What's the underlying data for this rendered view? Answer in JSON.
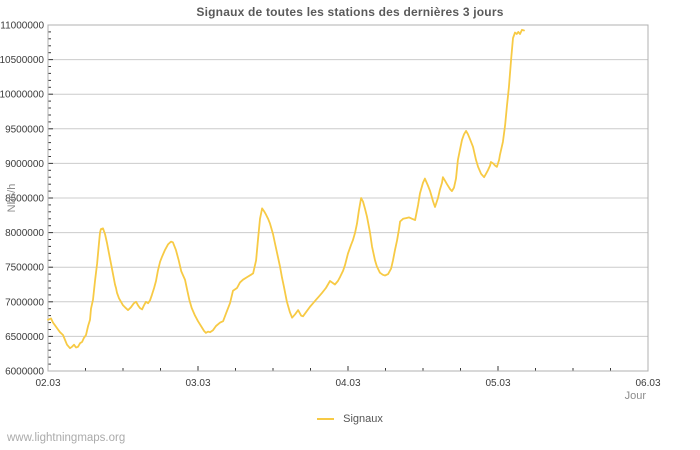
{
  "chart": {
    "title": "Signaux de toutes les stations des dernières 3 jours",
    "xlabel": "Jour",
    "ylabel": "Nbs/h",
    "legend": [
      "Signaux"
    ]
  },
  "footer": {
    "watermark": "www.lightningmaps.org"
  },
  "colors": {
    "line": "#f7ca45",
    "grid": "#cccccc",
    "border": "#b0b0b0",
    "tick": "#3a3a3a",
    "tick_label": "#3c3c3c",
    "title": "#5a5a5a",
    "axis_title": "#8c8c8c",
    "watermark": "#ababab"
  },
  "chart_data": {
    "type": "line",
    "title": "Signaux de toutes les stations des dernières 3 jours",
    "xlabel": "Jour",
    "ylabel": "Nbs/h",
    "grid": "horizontal-only",
    "legend_position": "bottom-center",
    "xlim_days": [
      0,
      4
    ],
    "ylim": [
      6000000,
      11000000
    ],
    "x_tick_labels": [
      "02.03",
      "03.03",
      "04.03",
      "05.03",
      "06.03"
    ],
    "x_tick_days": [
      0,
      1,
      2,
      3,
      4
    ],
    "x_minor_tick_step_days": 0.25,
    "y_tick_labels": [
      "6000000",
      "6500000",
      "7000000",
      "7500000",
      "8000000",
      "8500000",
      "9000000",
      "9500000",
      "10000000",
      "10500000",
      "11000000"
    ],
    "y_tick_values": [
      6000000,
      6500000,
      7000000,
      7500000,
      8000000,
      8500000,
      9000000,
      9500000,
      10000000,
      10500000,
      11000000
    ],
    "y_minor_tick_step": 100000,
    "series": [
      {
        "name": "Signaux",
        "color": "#f7ca45",
        "points": [
          [
            0.0,
            6740000
          ],
          [
            0.02,
            6760000
          ],
          [
            0.033,
            6700000
          ],
          [
            0.047,
            6660000
          ],
          [
            0.067,
            6600000
          ],
          [
            0.08,
            6560000
          ],
          [
            0.1,
            6520000
          ],
          [
            0.113,
            6450000
          ],
          [
            0.127,
            6380000
          ],
          [
            0.147,
            6330000
          ],
          [
            0.16,
            6350000
          ],
          [
            0.173,
            6380000
          ],
          [
            0.187,
            6340000
          ],
          [
            0.2,
            6350000
          ],
          [
            0.213,
            6400000
          ],
          [
            0.227,
            6420000
          ],
          [
            0.24,
            6480000
          ],
          [
            0.253,
            6520000
          ],
          [
            0.267,
            6650000
          ],
          [
            0.28,
            6740000
          ],
          [
            0.287,
            6900000
          ],
          [
            0.3,
            7030000
          ],
          [
            0.313,
            7300000
          ],
          [
            0.327,
            7550000
          ],
          [
            0.34,
            7850000
          ],
          [
            0.347,
            8000000
          ],
          [
            0.353,
            8050000
          ],
          [
            0.367,
            8060000
          ],
          [
            0.38,
            7980000
          ],
          [
            0.393,
            7850000
          ],
          [
            0.407,
            7700000
          ],
          [
            0.42,
            7550000
          ],
          [
            0.433,
            7400000
          ],
          [
            0.447,
            7250000
          ],
          [
            0.453,
            7200000
          ],
          [
            0.46,
            7130000
          ],
          [
            0.473,
            7050000
          ],
          [
            0.487,
            7000000
          ],
          [
            0.5,
            6950000
          ],
          [
            0.513,
            6920000
          ],
          [
            0.533,
            6880000
          ],
          [
            0.553,
            6920000
          ],
          [
            0.573,
            6980000
          ],
          [
            0.587,
            7000000
          ],
          [
            0.6,
            6950000
          ],
          [
            0.613,
            6910000
          ],
          [
            0.627,
            6890000
          ],
          [
            0.64,
            6950000
          ],
          [
            0.653,
            7000000
          ],
          [
            0.667,
            6980000
          ],
          [
            0.68,
            7020000
          ],
          [
            0.693,
            7100000
          ],
          [
            0.707,
            7200000
          ],
          [
            0.72,
            7300000
          ],
          [
            0.733,
            7450000
          ],
          [
            0.747,
            7580000
          ],
          [
            0.76,
            7650000
          ],
          [
            0.78,
            7750000
          ],
          [
            0.8,
            7830000
          ],
          [
            0.82,
            7870000
          ],
          [
            0.833,
            7860000
          ],
          [
            0.853,
            7750000
          ],
          [
            0.871,
            7600000
          ],
          [
            0.889,
            7440000
          ],
          [
            0.913,
            7320000
          ],
          [
            0.93,
            7150000
          ],
          [
            0.942,
            7030000
          ],
          [
            0.958,
            6910000
          ],
          [
            0.98,
            6800000
          ],
          [
            1.0,
            6720000
          ],
          [
            1.02,
            6650000
          ],
          [
            1.04,
            6580000
          ],
          [
            1.053,
            6550000
          ],
          [
            1.067,
            6570000
          ],
          [
            1.08,
            6560000
          ],
          [
            1.1,
            6590000
          ],
          [
            1.12,
            6650000
          ],
          [
            1.147,
            6700000
          ],
          [
            1.167,
            6720000
          ],
          [
            1.19,
            6850000
          ],
          [
            1.213,
            6980000
          ],
          [
            1.233,
            7160000
          ],
          [
            1.26,
            7200000
          ],
          [
            1.28,
            7280000
          ],
          [
            1.3,
            7320000
          ],
          [
            1.33,
            7360000
          ],
          [
            1.353,
            7390000
          ],
          [
            1.367,
            7410000
          ],
          [
            1.387,
            7600000
          ],
          [
            1.4,
            7900000
          ],
          [
            1.413,
            8200000
          ],
          [
            1.427,
            8350000
          ],
          [
            1.44,
            8310000
          ],
          [
            1.453,
            8260000
          ],
          [
            1.467,
            8200000
          ],
          [
            1.48,
            8130000
          ],
          [
            1.5,
            7980000
          ],
          [
            1.513,
            7850000
          ],
          [
            1.533,
            7650000
          ],
          [
            1.547,
            7510000
          ],
          [
            1.56,
            7350000
          ],
          [
            1.573,
            7220000
          ],
          [
            1.593,
            7000000
          ],
          [
            1.613,
            6850000
          ],
          [
            1.627,
            6770000
          ],
          [
            1.647,
            6820000
          ],
          [
            1.667,
            6880000
          ],
          [
            1.687,
            6800000
          ],
          [
            1.7,
            6790000
          ],
          [
            1.72,
            6850000
          ],
          [
            1.747,
            6930000
          ],
          [
            1.767,
            6980000
          ],
          [
            1.787,
            7030000
          ],
          [
            1.807,
            7080000
          ],
          [
            1.827,
            7130000
          ],
          [
            1.853,
            7200000
          ],
          [
            1.88,
            7300000
          ],
          [
            1.9,
            7270000
          ],
          [
            1.913,
            7250000
          ],
          [
            1.933,
            7300000
          ],
          [
            1.947,
            7360000
          ],
          [
            1.967,
            7450000
          ],
          [
            1.98,
            7530000
          ],
          [
            2.0,
            7700000
          ],
          [
            2.02,
            7820000
          ],
          [
            2.033,
            7890000
          ],
          [
            2.047,
            8000000
          ],
          [
            2.06,
            8130000
          ],
          [
            2.073,
            8320000
          ],
          [
            2.087,
            8500000
          ],
          [
            2.1,
            8450000
          ],
          [
            2.113,
            8350000
          ],
          [
            2.127,
            8230000
          ],
          [
            2.147,
            8000000
          ],
          [
            2.16,
            7800000
          ],
          [
            2.18,
            7600000
          ],
          [
            2.193,
            7510000
          ],
          [
            2.213,
            7420000
          ],
          [
            2.233,
            7390000
          ],
          [
            2.247,
            7380000
          ],
          [
            2.267,
            7400000
          ],
          [
            2.287,
            7480000
          ],
          [
            2.3,
            7600000
          ],
          [
            2.313,
            7750000
          ],
          [
            2.327,
            7890000
          ],
          [
            2.34,
            8050000
          ],
          [
            2.347,
            8160000
          ],
          [
            2.367,
            8200000
          ],
          [
            2.387,
            8210000
          ],
          [
            2.407,
            8220000
          ],
          [
            2.427,
            8200000
          ],
          [
            2.447,
            8180000
          ],
          [
            2.467,
            8400000
          ],
          [
            2.48,
            8570000
          ],
          [
            2.5,
            8720000
          ],
          [
            2.513,
            8780000
          ],
          [
            2.533,
            8680000
          ],
          [
            2.547,
            8600000
          ],
          [
            2.567,
            8450000
          ],
          [
            2.58,
            8370000
          ],
          [
            2.6,
            8500000
          ],
          [
            2.613,
            8620000
          ],
          [
            2.627,
            8720000
          ],
          [
            2.633,
            8800000
          ],
          [
            2.647,
            8750000
          ],
          [
            2.66,
            8700000
          ],
          [
            2.68,
            8630000
          ],
          [
            2.693,
            8600000
          ],
          [
            2.707,
            8650000
          ],
          [
            2.72,
            8780000
          ],
          [
            2.733,
            9050000
          ],
          [
            2.747,
            9200000
          ],
          [
            2.76,
            9340000
          ],
          [
            2.773,
            9420000
          ],
          [
            2.787,
            9470000
          ],
          [
            2.8,
            9420000
          ],
          [
            2.813,
            9350000
          ],
          [
            2.833,
            9240000
          ],
          [
            2.853,
            9050000
          ],
          [
            2.867,
            8950000
          ],
          [
            2.887,
            8850000
          ],
          [
            2.907,
            8800000
          ],
          [
            2.92,
            8850000
          ],
          [
            2.933,
            8900000
          ],
          [
            2.947,
            8970000
          ],
          [
            2.953,
            9020000
          ],
          [
            2.967,
            9000000
          ],
          [
            2.98,
            8970000
          ],
          [
            2.993,
            8950000
          ],
          [
            3.007,
            9050000
          ],
          [
            3.013,
            9120000
          ],
          [
            3.033,
            9310000
          ],
          [
            3.047,
            9550000
          ],
          [
            3.06,
            9840000
          ],
          [
            3.073,
            10100000
          ],
          [
            3.087,
            10500000
          ],
          [
            3.1,
            10810000
          ],
          [
            3.113,
            10890000
          ],
          [
            3.125,
            10870000
          ],
          [
            3.135,
            10900000
          ],
          [
            3.147,
            10870000
          ],
          [
            3.16,
            10930000
          ],
          [
            3.173,
            10920000
          ]
        ]
      }
    ]
  }
}
